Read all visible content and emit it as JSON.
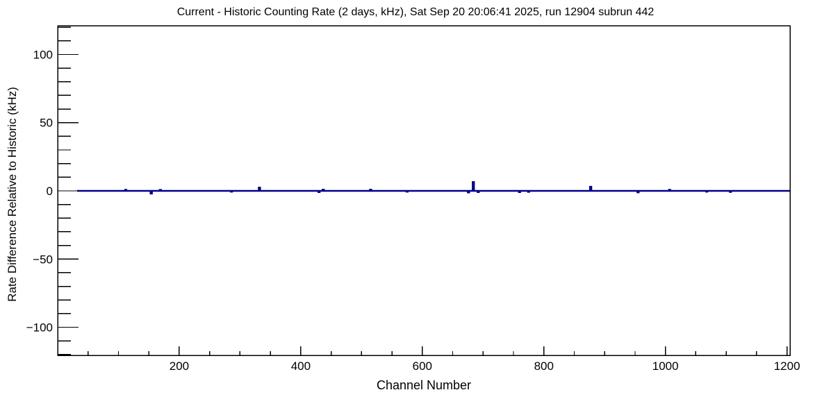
{
  "chart_data": {
    "type": "line",
    "subtype": "histogram-step",
    "title": "Current - Historic Counting Rate (2 days, kHz), Sat Sep 20 20:06:41 2025, run 12904 subrun 442",
    "xlabel": "Channel Number",
    "ylabel": "Rate Difference Relative to Historic (kHz)",
    "xlim": [
      0,
      1205
    ],
    "ylim": [
      -120.6,
      121.1
    ],
    "x_major_ticks": [
      200,
      400,
      600,
      800,
      1000,
      1200
    ],
    "x_minor_step": 50,
    "y_major_ticks": [
      -100,
      -50,
      0,
      50,
      100
    ],
    "y_minor_step": 10,
    "grid": false,
    "legend": false,
    "line_color": "#00008b",
    "axis_color": "#000000",
    "background_color": "#ffffff",
    "series": [
      {
        "name": "current-minus-historic-rate",
        "default_value": 0,
        "line_start_channel": 32,
        "line_end_channel": 1205,
        "spikes": [
          {
            "channel": 112,
            "value": 0.8
          },
          {
            "channel": 154,
            "value": -2.0
          },
          {
            "channel": 169,
            "value": 0.7
          },
          {
            "channel": 286,
            "value": -0.6
          },
          {
            "channel": 332,
            "value": 2.4
          },
          {
            "channel": 430,
            "value": -0.9
          },
          {
            "channel": 437,
            "value": 0.9
          },
          {
            "channel": 515,
            "value": 0.9
          },
          {
            "channel": 575,
            "value": -0.6
          },
          {
            "channel": 676,
            "value": -1.2
          },
          {
            "channel": 684,
            "value": 6.5
          },
          {
            "channel": 692,
            "value": -0.9
          },
          {
            "channel": 760,
            "value": -0.9
          },
          {
            "channel": 775,
            "value": -0.7
          },
          {
            "channel": 877,
            "value": 3.0
          },
          {
            "channel": 955,
            "value": -1.1
          },
          {
            "channel": 1007,
            "value": 0.8
          },
          {
            "channel": 1068,
            "value": -0.6
          },
          {
            "channel": 1107,
            "value": -0.8
          }
        ]
      }
    ]
  }
}
